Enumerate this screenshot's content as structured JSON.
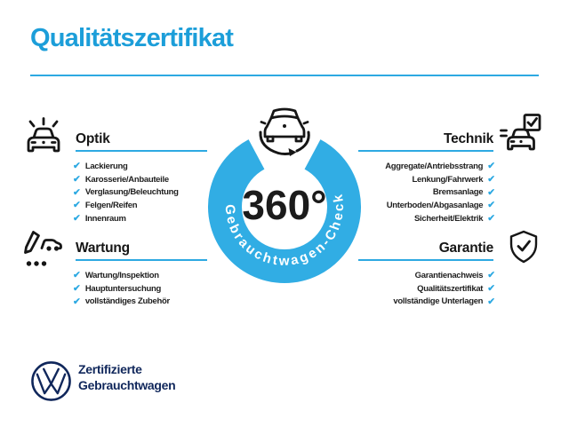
{
  "title": "Qualitätszertifikat",
  "center": {
    "badge_value": "360°",
    "ring_label": "Gebrauchtwagen-Check"
  },
  "check_glyph": "✔",
  "sections": {
    "optik": {
      "title": "Optik",
      "icon": "car-shine-icon",
      "items": [
        "Lackierung",
        "Karosserie/Anbauteile",
        "Verglasung/Beleuchtung",
        "Felgen/Reifen",
        "Innenraum"
      ]
    },
    "technik": {
      "title": "Technik",
      "icon": "car-checkbox-icon",
      "items": [
        "Aggregate/Antriebsstrang",
        "Lenkung/Fahrwerk",
        "Bremsanlage",
        "Unterboden/Abgasanlage",
        "Sicherheit/Elektrik"
      ]
    },
    "wartung": {
      "title": "Wartung",
      "icon": "service-pen-car-icon",
      "items": [
        "Wartung/Inspektion",
        "Hauptuntersuchung",
        "vollständiges Zubehör"
      ]
    },
    "garantie": {
      "title": "Garantie",
      "icon": "shield-check-icon",
      "items": [
        "Garantienachweis",
        "Qualitätszertifikat",
        "vollständige Unterlagen"
      ]
    }
  },
  "footer": {
    "logo": "vw-logo",
    "brand_line1": "Zertifizierte",
    "brand_line2": "Gebrauchtwagen"
  },
  "colors": {
    "accent_blue": "#2DA9E2",
    "ring_blue": "#31ADE4",
    "title_blue": "#1C9ED9",
    "navy": "#10275B",
    "text_dark": "#161616"
  }
}
